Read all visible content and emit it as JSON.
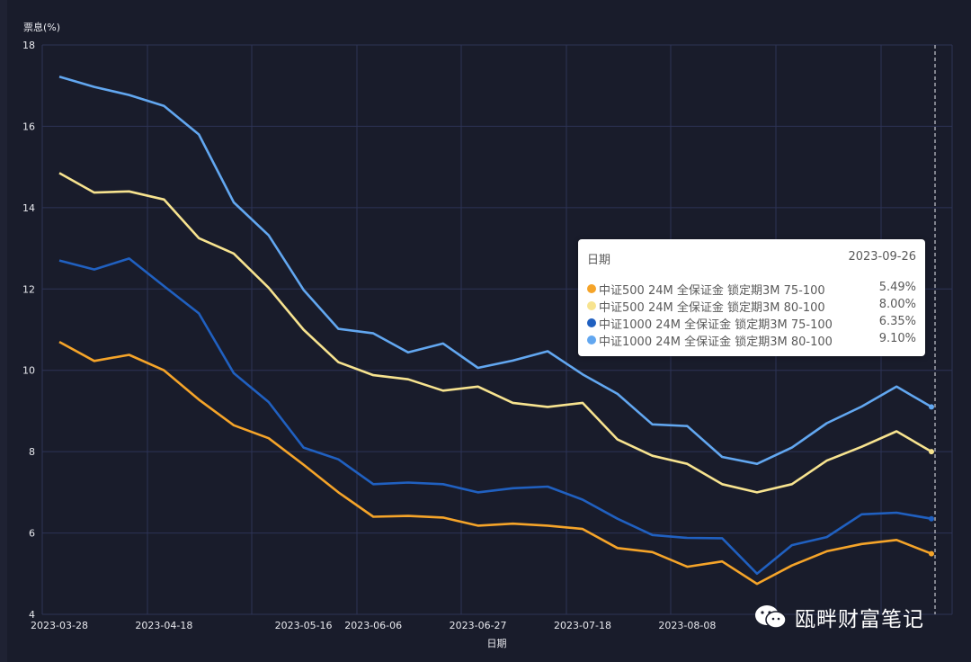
{
  "chart_data": {
    "type": "line",
    "xlabel": "日期",
    "ylabel": "票息(%)",
    "ylim": [
      4,
      18
    ],
    "yticks": [
      4,
      6,
      8,
      10,
      12,
      14,
      16,
      18
    ],
    "x": [
      "2023-03-28",
      "2023-04-04",
      "2023-04-11",
      "2023-04-18",
      "2023-04-25",
      "2023-05-02",
      "2023-05-09",
      "2023-05-16",
      "2023-05-23",
      "2023-06-06",
      "2023-06-13",
      "2023-06-20",
      "2023-06-27",
      "2023-07-04",
      "2023-07-11",
      "2023-07-18",
      "2023-07-25",
      "2023-08-01",
      "2023-08-08",
      "2023-08-15",
      "2023-08-22",
      "2023-08-29",
      "2023-09-05",
      "2023-09-12",
      "2023-09-19",
      "2023-09-26"
    ],
    "xtick_labels": [
      "2023-03-28",
      "2023-04-18",
      "2023-05-16",
      "2023-06-06",
      "2023-06-27",
      "2023-07-18",
      "2023-08-08"
    ],
    "series": [
      {
        "name": "中证500 24M 全保证金 锁定期3M 75-100",
        "color": "#f5a429",
        "values": [
          10.7,
          10.23,
          10.38,
          10.0,
          9.28,
          8.65,
          8.33,
          7.68,
          7.0,
          6.4,
          6.42,
          6.38,
          6.18,
          6.23,
          6.18,
          6.1,
          5.63,
          5.53,
          5.17,
          5.3,
          4.75,
          5.2,
          5.55,
          5.73,
          5.83,
          5.49
        ]
      },
      {
        "name": "中证500 24M 全保证金 锁定期3M 80-100",
        "color": "#f7e38f",
        "values": [
          14.85,
          14.37,
          14.4,
          14.2,
          13.25,
          12.87,
          12.03,
          11.0,
          10.2,
          9.88,
          9.78,
          9.5,
          9.6,
          9.2,
          9.1,
          9.2,
          8.3,
          7.9,
          7.7,
          7.2,
          7.0,
          7.2,
          7.78,
          8.12,
          8.5,
          8.0
        ]
      },
      {
        "name": "中证1000 24M 全保证金 锁定期3M 75-100",
        "color": "#2060c0",
        "values": [
          12.7,
          12.48,
          12.75,
          12.07,
          11.4,
          9.93,
          9.22,
          8.1,
          7.81,
          7.2,
          7.24,
          7.2,
          7.0,
          7.1,
          7.14,
          6.82,
          6.35,
          5.95,
          5.88,
          5.87,
          5.0,
          5.7,
          5.9,
          6.46,
          6.5,
          6.35
        ]
      },
      {
        "name": "中证1000 24M 全保证金 锁定期3M 80-100",
        "color": "#62a7f0",
        "values": [
          17.22,
          16.97,
          16.77,
          16.5,
          15.8,
          14.13,
          13.32,
          11.98,
          11.02,
          10.91,
          10.44,
          10.66,
          10.06,
          10.24,
          10.47,
          9.9,
          9.42,
          8.67,
          8.63,
          7.87,
          7.7,
          8.1,
          8.7,
          9.11,
          9.6,
          9.1
        ]
      }
    ],
    "tooltip": {
      "date_label": "日期",
      "date": "2023-09-26",
      "values": [
        "5.49%",
        "8.00%",
        "6.35%",
        "9.10%"
      ]
    },
    "watermark": "瓯畔财富笔记",
    "colors": {
      "background": "#191c2b",
      "grid": "#2d3356",
      "axis_text": "#e8e9ee"
    }
  }
}
